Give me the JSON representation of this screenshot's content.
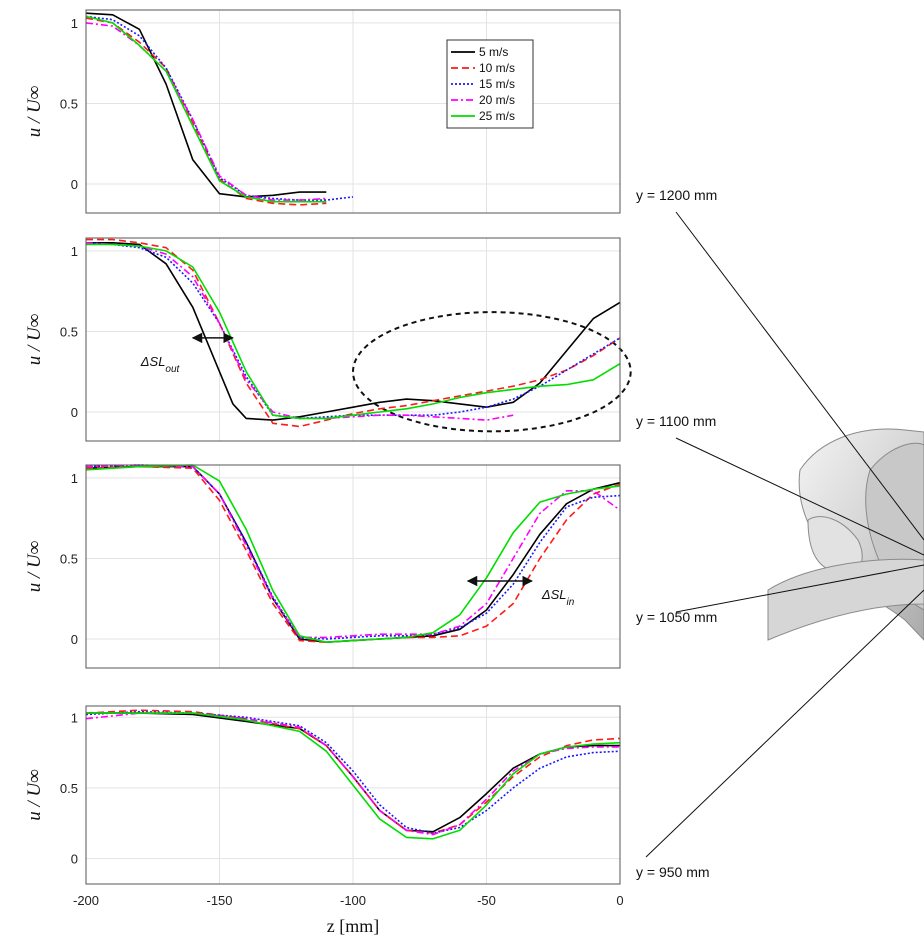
{
  "chart_data": {
    "type": "line",
    "xlabel": "z [mm]",
    "ylabel": "u / U∞",
    "xlim": [
      -200,
      0
    ],
    "ylim": [
      -0.18,
      1.08
    ],
    "xticks": [
      -200,
      -150,
      -100,
      -50,
      0
    ],
    "yticks": [
      0,
      0.5,
      1
    ],
    "grid": true,
    "legend": {
      "placement": "top-right of first panel",
      "entries": [
        "5 m/s",
        "10 m/s",
        "15 m/s",
        "20 m/s",
        "25 m/s"
      ]
    },
    "series_styles": [
      {
        "name": "5 m/s",
        "color": "#000000",
        "dash": "solid"
      },
      {
        "name": "10 m/s",
        "color": "#ff1a1a",
        "dash": "dashed"
      },
      {
        "name": "15 m/s",
        "color": "#1a1aff",
        "dash": "dotted"
      },
      {
        "name": "20 m/s",
        "color": "#ff00ff",
        "dash": "dashdot"
      },
      {
        "name": "25 m/s",
        "color": "#00dd00",
        "dash": "solid"
      }
    ],
    "panels": [
      {
        "label": "y = 1200 mm",
        "series": [
          {
            "name": "5 m/s",
            "x": [
              -200,
              -190,
              -180,
              -170,
              -160,
              -150,
              -140,
              -130,
              -120,
              -110
            ],
            "y": [
              1.06,
              1.05,
              0.96,
              0.62,
              0.15,
              -0.06,
              -0.08,
              -0.07,
              -0.05,
              -0.05
            ]
          },
          {
            "name": "10 m/s",
            "x": [
              -200,
              -190,
              -180,
              -170,
              -160,
              -150,
              -140,
              -130,
              -120,
              -110
            ],
            "y": [
              1.03,
              1.0,
              0.88,
              0.72,
              0.38,
              0.03,
              -0.09,
              -0.12,
              -0.13,
              -0.12
            ]
          },
          {
            "name": "15 m/s",
            "x": [
              -200,
              -190,
              -180,
              -170,
              -160,
              -150,
              -140,
              -130,
              -120,
              -110,
              -100
            ],
            "y": [
              1.04,
              1.02,
              0.92,
              0.72,
              0.4,
              0.04,
              -0.07,
              -0.09,
              -0.1,
              -0.1,
              -0.08
            ]
          },
          {
            "name": "20 m/s",
            "x": [
              -200,
              -190,
              -180,
              -170,
              -160,
              -150,
              -140,
              -130,
              -120,
              -110
            ],
            "y": [
              1.0,
              0.98,
              0.86,
              0.7,
              0.4,
              0.05,
              -0.07,
              -0.1,
              -0.1,
              -0.09
            ]
          },
          {
            "name": "25 m/s",
            "x": [
              -200,
              -190,
              -180,
              -170,
              -160,
              -150,
              -140,
              -130,
              -120,
              -110
            ],
            "y": [
              1.04,
              1.0,
              0.86,
              0.7,
              0.36,
              0.02,
              -0.08,
              -0.11,
              -0.11,
              -0.11
            ]
          }
        ]
      },
      {
        "label": "y = 1100 mm",
        "annotations": [
          {
            "text": "ΔSL",
            "sub": "out",
            "x1": -160,
            "x2": -145,
            "y": 0.46
          }
        ],
        "ellipse": {
          "cx": -48,
          "cy": 0.25,
          "rx": 52,
          "ry": 0.37
        },
        "series": [
          {
            "name": "5 m/s",
            "x": [
              -200,
              -190,
              -180,
              -170,
              -160,
              -150,
              -145,
              -140,
              -130,
              -120,
              -110,
              -100,
              -90,
              -80,
              -70,
              -60,
              -50,
              -40,
              -30,
              -20,
              -10,
              0
            ],
            "y": [
              1.05,
              1.05,
              1.04,
              0.92,
              0.65,
              0.25,
              0.05,
              -0.04,
              -0.05,
              -0.03,
              0.0,
              0.03,
              0.06,
              0.08,
              0.07,
              0.05,
              0.03,
              0.06,
              0.18,
              0.38,
              0.58,
              0.68
            ]
          },
          {
            "name": "10 m/s",
            "x": [
              -200,
              -190,
              -180,
              -170,
              -160,
              -150,
              -140,
              -130,
              -120,
              -110,
              -100,
              -90,
              -80,
              -70,
              -60,
              -50,
              -40,
              -30,
              -20,
              -10,
              0
            ],
            "y": [
              1.07,
              1.07,
              1.05,
              1.02,
              0.88,
              0.55,
              0.18,
              -0.07,
              -0.09,
              -0.05,
              -0.01,
              0.02,
              0.04,
              0.07,
              0.1,
              0.13,
              0.16,
              0.2,
              0.26,
              0.35,
              0.46
            ]
          },
          {
            "name": "15 m/s",
            "x": [
              -200,
              -190,
              -180,
              -170,
              -160,
              -150,
              -140,
              -130,
              -120,
              -110,
              -100,
              -90,
              -80,
              -70,
              -60,
              -50,
              -40,
              -30,
              -20,
              -10,
              0
            ],
            "y": [
              1.05,
              1.04,
              1.02,
              0.96,
              0.8,
              0.55,
              0.22,
              -0.02,
              -0.04,
              -0.03,
              -0.02,
              -0.02,
              -0.02,
              -0.02,
              0.0,
              0.03,
              0.08,
              0.16,
              0.26,
              0.36,
              0.46
            ]
          },
          {
            "name": "20 m/s",
            "x": [
              -200,
              -190,
              -180,
              -170,
              -160,
              -150,
              -140,
              -130,
              -120,
              -110,
              -100,
              -90,
              -80,
              -70,
              -60,
              -50,
              -40
            ],
            "y": [
              1.05,
              1.04,
              1.03,
              0.98,
              0.84,
              0.55,
              0.2,
              0.0,
              -0.04,
              -0.04,
              -0.03,
              -0.02,
              -0.02,
              -0.03,
              -0.04,
              -0.05,
              -0.02
            ]
          },
          {
            "name": "25 m/s",
            "x": [
              -200,
              -190,
              -180,
              -170,
              -160,
              -150,
              -140,
              -130,
              -120,
              -110,
              -100,
              -90,
              -80,
              -70,
              -60,
              -50,
              -40,
              -30,
              -20,
              -10,
              0
            ],
            "y": [
              1.04,
              1.04,
              1.03,
              1.0,
              0.9,
              0.62,
              0.25,
              -0.02,
              -0.04,
              -0.04,
              -0.02,
              0.0,
              0.02,
              0.05,
              0.09,
              0.12,
              0.14,
              0.16,
              0.17,
              0.2,
              0.3
            ]
          }
        ]
      },
      {
        "label": "y = 1050 mm",
        "annotations": [
          {
            "text": "ΔSL",
            "sub": "in",
            "x1": -57,
            "x2": -33,
            "y": 0.36
          }
        ],
        "series": [
          {
            "name": "5 m/s",
            "x": [
              -200,
              -180,
              -160,
              -150,
              -140,
              -130,
              -120,
              -110,
              -100,
              -90,
              -80,
              -70,
              -60,
              -50,
              -40,
              -30,
              -20,
              -10,
              0
            ],
            "y": [
              1.06,
              1.07,
              1.07,
              0.9,
              0.6,
              0.25,
              0.0,
              -0.02,
              -0.01,
              0.0,
              0.01,
              0.02,
              0.06,
              0.18,
              0.4,
              0.65,
              0.84,
              0.93,
              0.97
            ]
          },
          {
            "name": "10 m/s",
            "x": [
              -200,
              -180,
              -160,
              -150,
              -140,
              -130,
              -120,
              -110,
              -100,
              -90,
              -80,
              -70,
              -60,
              -50,
              -40,
              -30,
              -20,
              -10,
              0
            ],
            "y": [
              1.06,
              1.07,
              1.06,
              0.86,
              0.55,
              0.22,
              -0.01,
              -0.02,
              -0.01,
              0.0,
              0.01,
              0.01,
              0.02,
              0.08,
              0.22,
              0.5,
              0.74,
              0.9,
              0.96
            ]
          },
          {
            "name": "15 m/s",
            "x": [
              -200,
              -180,
              -160,
              -150,
              -140,
              -130,
              -120,
              -110,
              -100,
              -90,
              -80,
              -70,
              -60,
              -50,
              -40,
              -30,
              -20,
              -10,
              0
            ],
            "y": [
              1.07,
              1.08,
              1.07,
              0.9,
              0.6,
              0.26,
              0.01,
              0.0,
              0.01,
              0.02,
              0.02,
              0.03,
              0.07,
              0.16,
              0.34,
              0.6,
              0.82,
              0.88,
              0.89
            ]
          },
          {
            "name": "20 m/s",
            "x": [
              -200,
              -180,
              -160,
              -150,
              -140,
              -130,
              -120,
              -110,
              -100,
              -90,
              -80,
              -70,
              -60,
              -50,
              -40,
              -30,
              -20,
              -10,
              0
            ],
            "y": [
              1.07,
              1.08,
              1.07,
              0.9,
              0.58,
              0.25,
              0.01,
              0.01,
              0.02,
              0.03,
              0.03,
              0.03,
              0.08,
              0.22,
              0.5,
              0.78,
              0.92,
              0.92,
              0.8
            ]
          },
          {
            "name": "25 m/s",
            "x": [
              -200,
              -180,
              -160,
              -150,
              -140,
              -130,
              -120,
              -110,
              -100,
              -90,
              -80,
              -70,
              -60,
              -50,
              -40,
              -30,
              -20,
              -10,
              0
            ],
            "y": [
              1.05,
              1.07,
              1.08,
              0.98,
              0.68,
              0.3,
              0.02,
              -0.02,
              -0.01,
              0.0,
              0.01,
              0.04,
              0.15,
              0.38,
              0.66,
              0.85,
              0.9,
              0.93,
              0.95
            ]
          }
        ]
      },
      {
        "label": "y = 950 mm",
        "series": [
          {
            "name": "5 m/s",
            "x": [
              -200,
              -180,
              -160,
              -140,
              -120,
              -110,
              -100,
              -90,
              -80,
              -70,
              -60,
              -50,
              -40,
              -30,
              -20,
              -10,
              0
            ],
            "y": [
              1.03,
              1.03,
              1.02,
              0.97,
              0.92,
              0.8,
              0.58,
              0.34,
              0.2,
              0.19,
              0.29,
              0.46,
              0.64,
              0.74,
              0.79,
              0.8,
              0.8
            ]
          },
          {
            "name": "10 m/s",
            "x": [
              -200,
              -180,
              -160,
              -140,
              -120,
              -110,
              -100,
              -90,
              -80,
              -70,
              -60,
              -50,
              -40,
              -30,
              -20,
              -10,
              0
            ],
            "y": [
              1.03,
              1.05,
              1.04,
              0.99,
              0.92,
              0.8,
              0.58,
              0.34,
              0.2,
              0.18,
              0.24,
              0.4,
              0.58,
              0.72,
              0.8,
              0.84,
              0.85
            ]
          },
          {
            "name": "15 m/s",
            "x": [
              -200,
              -180,
              -160,
              -140,
              -120,
              -110,
              -100,
              -90,
              -80,
              -70,
              -60,
              -50,
              -40,
              -30,
              -20,
              -10,
              0
            ],
            "y": [
              1.02,
              1.04,
              1.03,
              1.0,
              0.94,
              0.82,
              0.62,
              0.38,
              0.22,
              0.18,
              0.22,
              0.34,
              0.5,
              0.64,
              0.72,
              0.75,
              0.76
            ]
          },
          {
            "name": "20 m/s",
            "x": [
              -200,
              -180,
              -160,
              -140,
              -120,
              -110,
              -100,
              -90,
              -80,
              -70,
              -60,
              -50,
              -40,
              -30,
              -20,
              -10,
              0
            ],
            "y": [
              0.99,
              1.03,
              1.03,
              0.99,
              0.93,
              0.8,
              0.58,
              0.34,
              0.2,
              0.17,
              0.24,
              0.42,
              0.62,
              0.74,
              0.78,
              0.79,
              0.79
            ]
          },
          {
            "name": "25 m/s",
            "x": [
              -200,
              -180,
              -160,
              -140,
              -120,
              -110,
              -100,
              -90,
              -80,
              -70,
              -60,
              -50,
              -40,
              -30,
              -20,
              -10,
              0
            ],
            "y": [
              1.03,
              1.03,
              1.03,
              0.98,
              0.9,
              0.76,
              0.52,
              0.28,
              0.15,
              0.14,
              0.2,
              0.38,
              0.6,
              0.74,
              0.79,
              0.81,
              0.82
            ]
          }
        ]
      }
    ]
  },
  "colors": {
    "ellipse": "#111111",
    "arrow": "#111111",
    "model": "#d9d9d9"
  },
  "model_icon": "human-head-torso-model"
}
